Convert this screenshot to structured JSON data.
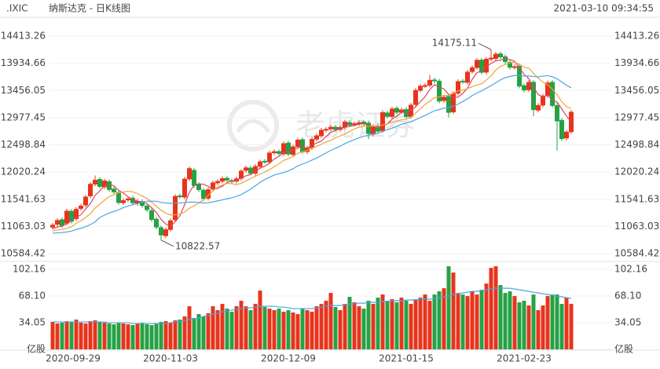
{
  "header": {
    "symbol": ".IXIC",
    "name": "纳斯达克 - 日K线图",
    "timestamp": "2021-03-10 09:34:55"
  },
  "watermark": "老虎证券",
  "chart_data": [
    {
      "type": "candlestick",
      "categories": [
        "2020-09-29",
        null,
        null,
        null,
        null,
        null,
        null,
        null,
        null,
        null,
        null,
        null,
        null,
        null,
        null,
        null,
        null,
        null,
        null,
        null,
        null,
        null,
        null,
        null,
        null,
        "2020-11-03",
        null,
        null,
        null,
        null,
        null,
        null,
        null,
        null,
        null,
        null,
        null,
        null,
        null,
        null,
        null,
        null,
        null,
        null,
        null,
        null,
        null,
        null,
        null,
        null,
        "2020-12-09",
        null,
        null,
        null,
        null,
        null,
        null,
        null,
        null,
        null,
        null,
        null,
        null,
        null,
        null,
        null,
        null,
        null,
        null,
        null,
        null,
        null,
        null,
        null,
        null,
        "2021-01-15",
        null,
        null,
        null,
        null,
        null,
        null,
        null,
        null,
        null,
        null,
        null,
        null,
        null,
        null,
        null,
        null,
        null,
        null,
        null,
        null,
        null,
        null,
        null,
        null,
        "2021-02-23",
        null,
        null,
        null,
        null,
        null,
        null,
        null,
        null,
        null,
        null
      ],
      "open": [
        11050,
        11100,
        11180,
        11120,
        11330,
        11200,
        11380,
        11440,
        11600,
        11810,
        11890,
        11760,
        11850,
        11720,
        11660,
        11480,
        11530,
        11560,
        11470,
        11500,
        11420,
        11340,
        11190,
        11040,
        10900,
        11010,
        11180,
        11600,
        11580,
        11900,
        12050,
        11800,
        11700,
        11560,
        11720,
        11830,
        11860,
        11910,
        11870,
        11860,
        11910,
        12050,
        12090,
        12000,
        12120,
        12210,
        12200,
        12360,
        12380,
        12340,
        12530,
        12330,
        12470,
        12590,
        12380,
        12450,
        12600,
        12660,
        12760,
        12780,
        12810,
        12770,
        12810,
        12890,
        12860,
        12870,
        12900,
        12880,
        12690,
        12830,
        12750,
        13060,
        13000,
        13140,
        13080,
        13120,
        13000,
        13210,
        13460,
        13540,
        13550,
        13640,
        13620,
        13280,
        13350,
        13080,
        13410,
        13620,
        13600,
        13790,
        13860,
        13990,
        13780,
        14010,
        14020,
        14100,
        14050,
        13950,
        13860,
        13880,
        13540,
        13470,
        13600,
        13110,
        13200,
        13370,
        13600,
        13190,
        12930,
        12620,
        12730
      ],
      "high": [
        11125,
        11207,
        11220,
        11372,
        11370,
        11404,
        11460,
        11619,
        11844,
        11960,
        11930,
        11903,
        11890,
        11760,
        11700,
        11556,
        11588,
        11600,
        11546,
        11540,
        11460,
        11380,
        11230,
        11080,
        11045,
        11201,
        11631,
        11640,
        11935,
        12120,
        12090,
        11840,
        11740,
        11749,
        11869,
        11894,
        11944,
        11950,
        11910,
        11940,
        12076,
        12134,
        12130,
        12158,
        12238,
        12250,
        12395,
        12418,
        12420,
        12559,
        12570,
        12503,
        12622,
        12630,
        12481,
        12635,
        12698,
        12796,
        12812,
        12848,
        12850,
        12844,
        12939,
        12930,
        12911,
        12928,
        12940,
        12920,
        12858,
        12870,
        13107,
        13100,
        13169,
        13180,
        13153,
        13160,
        13237,
        13497,
        13570,
        13583,
        13728,
        13680,
        13660,
        13377,
        13390,
        13443,
        13652,
        13660,
        13818,
        13896,
        14027,
        14030,
        14047,
        14175.11,
        14135,
        14140,
        14090,
        13990,
        13914,
        13920,
        13580,
        13637,
        13640,
        13232,
        13398,
        13628,
        13640,
        13230,
        12970,
        12763,
        13113
      ],
      "low": [
        11010,
        11060,
        11035,
        11080,
        11114,
        11160,
        11340,
        11400,
        11560,
        11770,
        11728,
        11720,
        11673,
        11631,
        11444,
        11440,
        11490,
        11438,
        11430,
        11391,
        11318,
        11145,
        11012,
        10822.57,
        10860,
        10970,
        11140,
        11550,
        11540,
        11860,
        11746,
        11670,
        11513,
        11520,
        11680,
        11790,
        11820,
        11840,
        11815,
        11820,
        11870,
        12010,
        11959,
        11960,
        12080,
        12165,
        12160,
        12320,
        12309,
        12300,
        12299,
        12290,
        12430,
        12337,
        12340,
        12410,
        12560,
        12620,
        12720,
        12740,
        12731,
        12730,
        12770,
        12810,
        12820,
        12830,
        12830,
        12600,
        12650,
        12700,
        12710,
        12959,
        12960,
        13033,
        13040,
        12958,
        12960,
        13170,
        13420,
        13500,
        13510,
        13586,
        13230,
        13240,
        12980,
        13040,
        13370,
        13571,
        13560,
        13750,
        13820,
        13737,
        13740,
        13970,
        13980,
        14007,
        13925,
        13825,
        13820,
        13494,
        13425,
        13430,
        13003,
        13070,
        13160,
        13330,
        13152,
        12397,
        12569,
        12580,
        12690
      ],
      "close": [
        11085,
        11167,
        11075,
        11332,
        11154,
        11364,
        11420,
        11579,
        11804,
        11876,
        11768,
        11863,
        11713,
        11671,
        11484,
        11516,
        11548,
        11478,
        11506,
        11431,
        11358,
        11185,
        11052,
        10912,
        11005,
        11161,
        11591,
        11590,
        11895,
        12080,
        11786,
        11710,
        11553,
        11709,
        11829,
        11854,
        11904,
        11880,
        11855,
        11900,
        12036,
        12094,
        11999,
        12118,
        12198,
        12205,
        12355,
        12378,
        12349,
        12519,
        12339,
        12463,
        12582,
        12377,
        12441,
        12595,
        12658,
        12756,
        12772,
        12808,
        12771,
        12804,
        12899,
        12850,
        12871,
        12888,
        12870,
        12698,
        12818,
        12740,
        13067,
        12999,
        13129,
        13073,
        13113,
        12998,
        13197,
        13457,
        13530,
        13543,
        13635,
        13626,
        13270,
        13337,
        13071,
        13403,
        13612,
        13611,
        13778,
        13856,
        13987,
        13777,
        14007,
        14026,
        14095,
        14047,
        13965,
        13865,
        13874,
        13534,
        13465,
        13597,
        13119,
        13192,
        13358,
        13588,
        13192,
        12920,
        12609,
        12723,
        13073
      ],
      "up_color": "#e8341c",
      "down_color": "#25a244",
      "series": [
        {
          "color": "#d6485f",
          "values": [
            11020,
            11050,
            11070,
            11110,
            11163,
            11218,
            11269,
            11370,
            11464,
            11609,
            11689,
            11778,
            11805,
            11778,
            11700,
            11649,
            11586,
            11539,
            11506,
            11496,
            11464,
            11392,
            11306,
            11188,
            11102,
            11063,
            11144,
            11252,
            11448,
            11663,
            11788,
            11812,
            11805,
            11768,
            11717,
            11731,
            11770,
            11835,
            11864,
            11879,
            11915,
            11953,
            11977,
            12029,
            12089,
            12123,
            12175,
            12251,
            12297,
            12361,
            12388,
            12410,
            12450,
            12456,
            12440,
            12492,
            12531,
            12565,
            12644,
            12718,
            12753,
            12782,
            12811,
            12826,
            12839,
            12862,
            12876,
            12835,
            12829,
            12803,
            12839,
            12864,
            12951,
            13002,
            13076,
            13062,
            13102,
            13168,
            13259,
            13345,
            13472,
            13558,
            13521,
            13482,
            13388,
            13341,
            13339,
            13407,
            13495,
            13652,
            13769,
            13802,
            13881,
            13931,
            13978,
            13990,
            14028,
            14000,
            13969,
            13857,
            13741,
            13667,
            13518,
            13381,
            13346,
            13371,
            13290,
            13250,
            13133,
            13006,
            12903
          ]
        },
        {
          "color": "#f5a13a",
          "values": [
            10985,
            11000,
            11010,
            11030,
            11057,
            11119,
            11160,
            11220,
            11287,
            11386,
            11454,
            11524,
            11588,
            11621,
            11655,
            11669,
            11682,
            11672,
            11642,
            11598,
            11557,
            11489,
            11423,
            11347,
            11299,
            11264,
            11268,
            11279,
            11318,
            11383,
            11426,
            11478,
            11529,
            11608,
            11690,
            11760,
            11791,
            11820,
            11816,
            11798,
            11823,
            11862,
            11906,
            11947,
            11984,
            12019,
            12064,
            12114,
            12163,
            12225,
            12256,
            12293,
            12351,
            12377,
            12401,
            12440,
            12471,
            12508,
            12550,
            12579,
            12623,
            12657,
            12688,
            12735,
            12779,
            12808,
            12829,
            12823,
            12828,
            12821,
            12851,
            12870,
            12893,
            12916,
            12940,
            12951,
            12983,
            13060,
            13131,
            13211,
            13267,
            13330,
            13345,
            13371,
            13367,
            13407,
            13449,
            13464,
            13489,
            13520,
            13555,
            13571,
            13644,
            13713,
            13815,
            13880,
            13915,
            13941,
            13950,
            13918,
            13866,
            13848,
            13759,
            13675,
            13602,
            13556,
            13479,
            13384,
            13257,
            13176,
            13137
          ]
        },
        {
          "color": "#4ba6e0",
          "values": [
            10943,
            10950,
            10955,
            10965,
            10979,
            11010,
            11030,
            11060,
            11094,
            11143,
            11220,
            11262,
            11299,
            11326,
            11356,
            11394,
            11421,
            11446,
            11465,
            11492,
            11506,
            11507,
            11506,
            11484,
            11477,
            11467,
            11475,
            11476,
            11480,
            11491,
            11492,
            11484,
            11476,
            11478,
            11495,
            11512,
            11530,
            11550,
            11567,
            11591,
            11625,
            11670,
            11718,
            11778,
            11837,
            11890,
            11928,
            11967,
            11990,
            12012,
            12040,
            12078,
            12129,
            12162,
            12193,
            12230,
            12268,
            12311,
            12357,
            12402,
            12440,
            12475,
            12520,
            12556,
            12590,
            12624,
            12650,
            12666,
            12689,
            12700,
            12737,
            12764,
            12791,
            12826,
            12860,
            12880,
            12906,
            12942,
            12980,
            13016,
            13059,
            13100,
            13119,
            13144,
            13154,
            13179,
            13216,
            13262,
            13310,
            13366,
            13411,
            13451,
            13495,
            13542,
            13591,
            13644,
            13682,
            13703,
            13720,
            13719,
            13711,
            13710,
            13702,
            13694,
            13709,
            13718,
            13697,
            13663,
            13604,
            13547,
            13502
          ]
        }
      ],
      "ylim": [
        10584.42,
        14413.26
      ],
      "yticks": [
        10584.42,
        11063.03,
        11541.63,
        12020.24,
        12498.84,
        12977.45,
        13456.05,
        13934.66,
        14413.26
      ]
    },
    {
      "type": "bar",
      "values": [
        35,
        33,
        34,
        36,
        35,
        38,
        34,
        33,
        36,
        37,
        35,
        34,
        33,
        32,
        34,
        33,
        32,
        31,
        33,
        34,
        32,
        31,
        33,
        35,
        36,
        34,
        37,
        38,
        42,
        55,
        40,
        45,
        42,
        46,
        55,
        50,
        58,
        52,
        48,
        55,
        62,
        55,
        50,
        58,
        75,
        54,
        52,
        50,
        52,
        48,
        50,
        47,
        45,
        52,
        50,
        48,
        55,
        58,
        62,
        72,
        54,
        50,
        58,
        67,
        60,
        55,
        52,
        62,
        58,
        66,
        70,
        62,
        64,
        60,
        66,
        62,
        58,
        64,
        66,
        70,
        62,
        70,
        74,
        78,
        106,
        98,
        72,
        70,
        68,
        74,
        70,
        76,
        84,
        104,
        106,
        82,
        72,
        74,
        68,
        60,
        62,
        56,
        70,
        50,
        56,
        68,
        70,
        70,
        58,
        66,
        58
      ],
      "series": [
        {
          "color": "#4ba6e0",
          "values": [
            35,
            35,
            35,
            35,
            35,
            35,
            35,
            35,
            35,
            35,
            35,
            35,
            34,
            34,
            34,
            34,
            34,
            33,
            33,
            33,
            33,
            33,
            33,
            33,
            33,
            34,
            35,
            36,
            37,
            38,
            39,
            40,
            42,
            43,
            45,
            46,
            48,
            49,
            50,
            51,
            52,
            53,
            53,
            54,
            55,
            55,
            55,
            55,
            54,
            54,
            53,
            52,
            52,
            52,
            52,
            52,
            53,
            54,
            55,
            56,
            56,
            56,
            57,
            58,
            58,
            59,
            59,
            60,
            60,
            60,
            61,
            61,
            62,
            62,
            62,
            63,
            63,
            63,
            64,
            64,
            64,
            65,
            66,
            67,
            68,
            70,
            71,
            72,
            73,
            74,
            74,
            75,
            76,
            77,
            78,
            78,
            78,
            78,
            77,
            76,
            75,
            74,
            73,
            72,
            71,
            70,
            69,
            68,
            67,
            66,
            65
          ]
        }
      ],
      "ylim": [
        0,
        102.16
      ],
      "yticks": [
        {
          "value": 0,
          "label": "亿股"
        },
        34.05,
        {
          "value": 68.1,
          "label": "68.10"
        },
        102.16
      ]
    }
  ]
}
